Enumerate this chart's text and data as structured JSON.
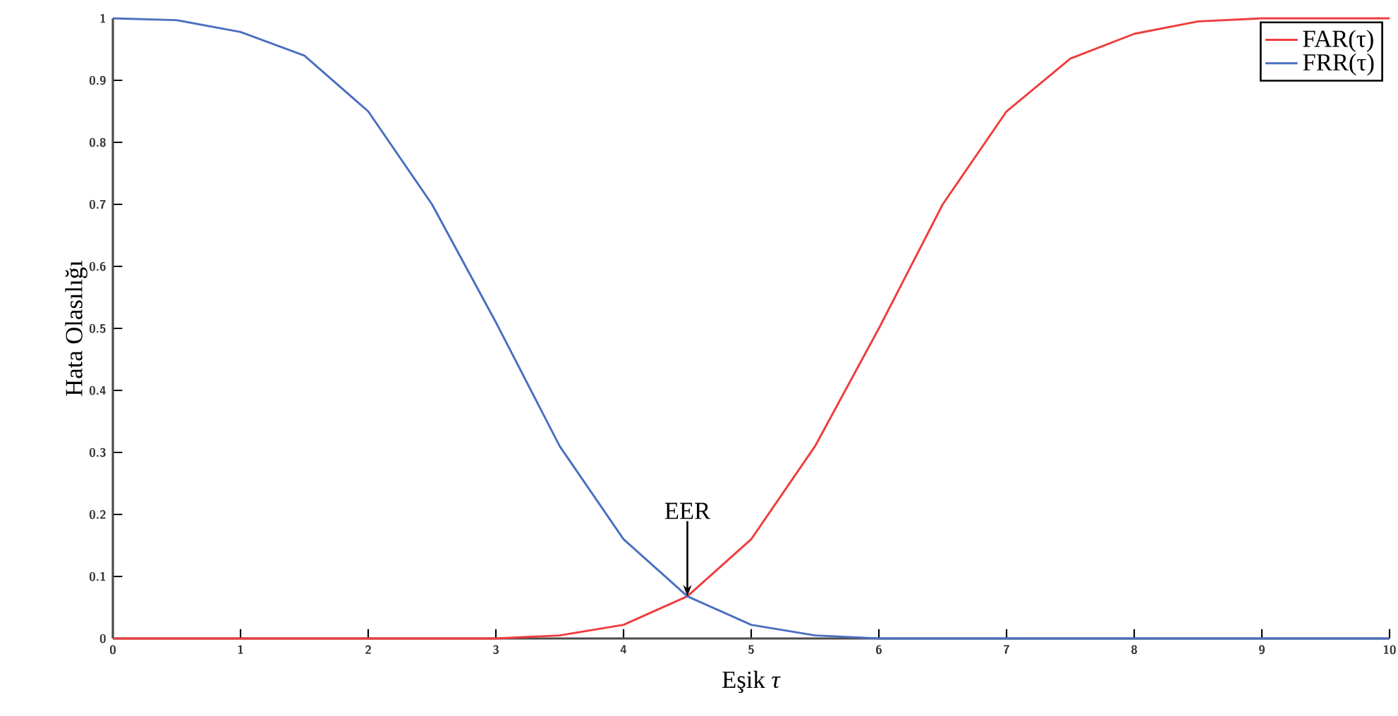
{
  "chart_data": {
    "type": "line",
    "xlabel": "Eşik *τ*",
    "ylabel": "Hata Olasılığı",
    "xlim": [
      0,
      10
    ],
    "ylim": [
      0,
      1
    ],
    "xticks": [
      0,
      1,
      2,
      3,
      4,
      5,
      6,
      7,
      8,
      9,
      10
    ],
    "yticks": [
      0,
      0.1,
      0.2,
      0.3,
      0.4,
      0.5,
      0.6,
      0.7,
      0.8,
      0.9,
      1
    ],
    "grid": false,
    "legend": "top right",
    "annotations": [
      {
        "text": "EER",
        "x": 4.5,
        "y": 0.068
      }
    ],
    "series": [
      {
        "name": "FAR(τ)",
        "color": "#f03c3c",
        "x": [
          0,
          0.5,
          1,
          1.5,
          2,
          2.5,
          3,
          3.5,
          4,
          4.5,
          5,
          5.5,
          6,
          6.5,
          7,
          7.5,
          8,
          8.5,
          9,
          9.5,
          10
        ],
        "values": [
          0,
          0,
          0,
          0,
          0,
          0,
          0,
          0.005,
          0.022,
          0.068,
          0.16,
          0.31,
          0.5,
          0.7,
          0.85,
          0.935,
          0.975,
          0.995,
          1,
          1,
          1
        ]
      },
      {
        "name": "FRR(τ)",
        "color": "#4a6fc0",
        "x": [
          0,
          0.5,
          1,
          1.5,
          2,
          2.5,
          3,
          3.5,
          4,
          4.5,
          5,
          5.5,
          6,
          6.5,
          7,
          7.5,
          8,
          8.5,
          9,
          9.5,
          10
        ],
        "values": [
          1,
          0.997,
          0.978,
          0.94,
          0.85,
          0.7,
          0.51,
          0.31,
          0.16,
          0.068,
          0.022,
          0.005,
          0,
          0,
          0,
          0,
          0,
          0,
          0,
          0,
          0
        ]
      }
    ]
  }
}
